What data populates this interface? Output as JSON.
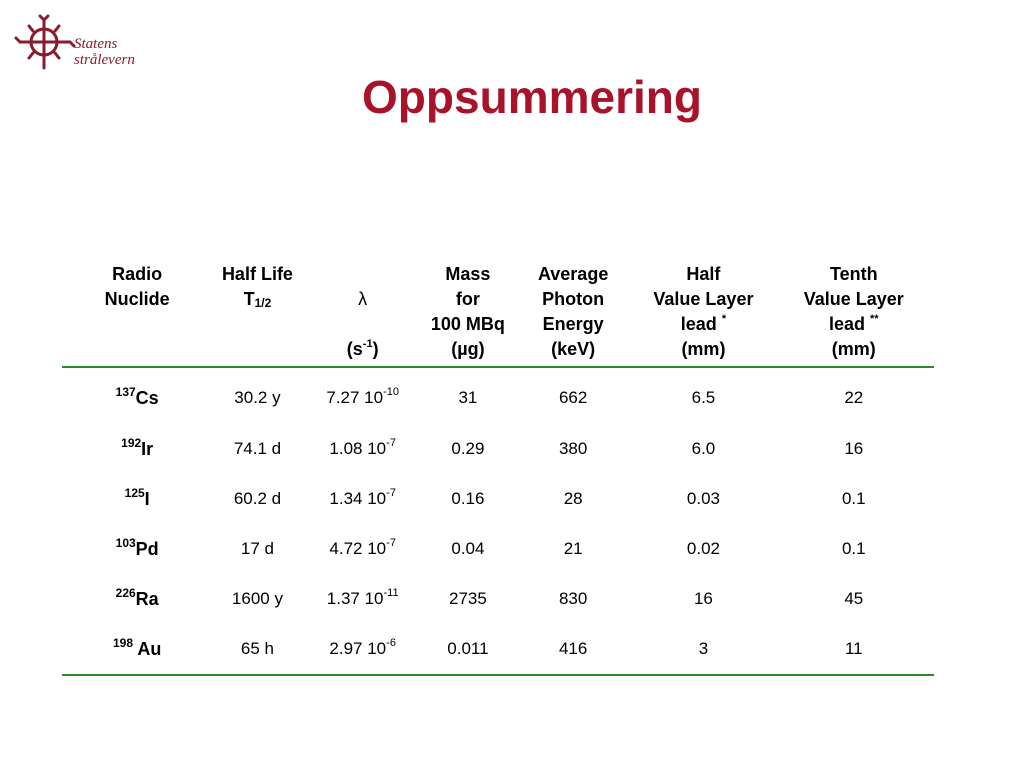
{
  "logo": {
    "line1": "Statens",
    "line2": "strålevern"
  },
  "title": "Oppsummering",
  "headers": {
    "radio": {
      "line1": "Radio",
      "line2": "Nuclide"
    },
    "half_life": {
      "line1": "Half Life",
      "t": "T",
      "sub": "1/2"
    },
    "lambda": {
      "symbol": "λ",
      "unit_open": "(s",
      "unit_sup": "-1",
      "unit_close": ")"
    },
    "mass": {
      "line1": "Mass",
      "line2": "for",
      "line3": "100 MBq",
      "line4": "(µg)"
    },
    "energy": {
      "line1": "Average",
      "line2": "Photon",
      "line3": "Energy",
      "line4": "(keV)"
    },
    "hvl": {
      "line1": "Half",
      "line2": "Value Layer",
      "line3": "lead",
      "mark": "*",
      "line4": "(mm)"
    },
    "tvl": {
      "line1": "Tenth",
      "line2": "Value Layer",
      "line3": "lead",
      "mark": "**",
      "line4": "(mm)"
    }
  },
  "rows": [
    {
      "mass_number": "137",
      "symbol": "Cs",
      "half_life": "30.2 y",
      "lambda_base": "7.27 10",
      "lambda_exp": "-10",
      "mass": "31",
      "energy": "662",
      "hvl": "6.5",
      "tvl": "22"
    },
    {
      "mass_number": "192",
      "symbol": "Ir",
      "half_life": "74.1 d",
      "lambda_base": "1.08 10",
      "lambda_exp": "-7",
      "mass": "0.29",
      "energy": "380",
      "hvl": "6.0",
      "tvl": "16"
    },
    {
      "mass_number": "125",
      "symbol": "I",
      "half_life": "60.2 d",
      "lambda_base": "1.34 10",
      "lambda_exp": "-7",
      "mass": "0.16",
      "energy": "28",
      "hvl": "0.03",
      "tvl": "0.1"
    },
    {
      "mass_number": "103",
      "symbol": "Pd",
      "half_life": "17 d",
      "lambda_base": "4.72 10",
      "lambda_exp": "-7",
      "mass": "0.04",
      "energy": "21",
      "hvl": "0.02",
      "tvl": "0.1"
    },
    {
      "mass_number": "226",
      "symbol": "Ra",
      "half_life": "1600 y",
      "lambda_base": "1.37 10",
      "lambda_exp": "-11",
      "mass": "2735",
      "energy": "830",
      "hvl": "16",
      "tvl": "45"
    },
    {
      "mass_number": "198",
      "symbol": " Au",
      "half_life": "65 h",
      "lambda_base": "2.97 10",
      "lambda_exp": "-6",
      "mass": "0.011",
      "energy": "416",
      "hvl": "3",
      "tvl": "11"
    }
  ],
  "colors": {
    "title": "#a8122a",
    "logo": "#8b1a2b",
    "rule": "#2a8a2a"
  },
  "icons": {
    "logo": "sun-cross-logo-icon"
  }
}
